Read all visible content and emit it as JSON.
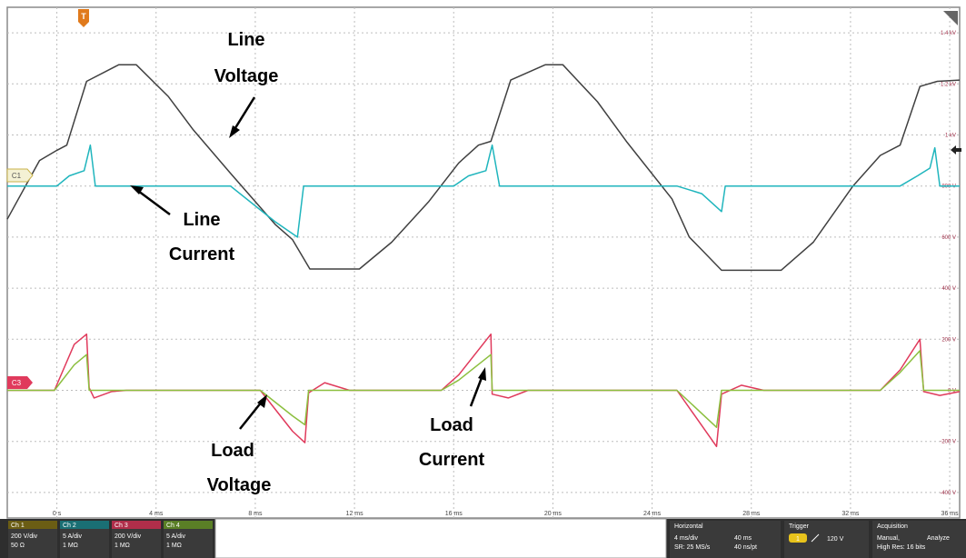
{
  "chart_data": {
    "type": "line",
    "xlabel": "",
    "ylabel": "",
    "x_range_ms": [
      -2,
      36.4
    ],
    "x_ticks": [
      {
        "x": 0,
        "label": "0 s"
      },
      {
        "x": 4,
        "label": "4 ms"
      },
      {
        "x": 8,
        "label": "8 ms"
      },
      {
        "x": 12,
        "label": "12 ms"
      },
      {
        "x": 16,
        "label": "16 ms"
      },
      {
        "x": 20,
        "label": "20 ms"
      },
      {
        "x": 24,
        "label": "24 ms"
      },
      {
        "x": 28,
        "label": "28 ms"
      },
      {
        "x": 32,
        "label": "32 ms"
      },
      {
        "x": 36,
        "label": "36 ms"
      }
    ],
    "y_range_V": [
      -500,
      1500
    ],
    "y_ticks": [
      {
        "v": 1400,
        "label": "1.4 kV"
      },
      {
        "v": 1200,
        "label": "1.2 kV"
      },
      {
        "v": 1000,
        "label": "1 kV"
      },
      {
        "v": 800,
        "label": "800 V"
      },
      {
        "v": 600,
        "label": "600 V"
      },
      {
        "v": 400,
        "label": "400 V"
      },
      {
        "v": 200,
        "label": "200 V"
      },
      {
        "v": 0,
        "label": "0 V"
      },
      {
        "v": -200,
        "label": "-200 V"
      },
      {
        "v": -400,
        "label": "-400 V"
      }
    ],
    "grid": true,
    "series": [
      {
        "name": "Ch 1",
        "color": "#404040",
        "points": [
          [
            -2,
            670
          ],
          [
            -0.7,
            900
          ],
          [
            0,
            940
          ],
          [
            0.4,
            960
          ],
          [
            1.2,
            1210
          ],
          [
            2.5,
            1275
          ],
          [
            3.2,
            1275
          ],
          [
            4.5,
            1150
          ],
          [
            5.5,
            1020
          ],
          [
            7,
            850
          ],
          [
            8.8,
            650
          ],
          [
            9.5,
            590
          ],
          [
            10.2,
            475
          ],
          [
            12.2,
            475
          ],
          [
            13.5,
            580
          ],
          [
            15,
            740
          ],
          [
            16.2,
            890
          ],
          [
            17,
            960
          ],
          [
            17.5,
            975
          ],
          [
            18.3,
            1215
          ],
          [
            19.7,
            1275
          ],
          [
            20.4,
            1275
          ],
          [
            21.8,
            1130
          ],
          [
            23,
            970
          ],
          [
            24.8,
            750
          ],
          [
            25.5,
            600
          ],
          [
            26,
            550
          ],
          [
            26.8,
            470
          ],
          [
            29.2,
            470
          ],
          [
            30.5,
            580
          ],
          [
            32.1,
            800
          ],
          [
            33.2,
            920
          ],
          [
            34,
            960
          ],
          [
            34.8,
            1190
          ],
          [
            35.5,
            1210
          ],
          [
            36.4,
            1215
          ]
        ]
      },
      {
        "name": "Ch 2",
        "color": "#1fb5bd",
        "points": [
          [
            -2,
            800
          ],
          [
            0,
            800
          ],
          [
            0.5,
            840
          ],
          [
            1.1,
            860
          ],
          [
            1.35,
            960
          ],
          [
            1.55,
            800
          ],
          [
            7,
            800
          ],
          [
            8.8,
            660
          ],
          [
            9.7,
            600
          ],
          [
            9.95,
            800
          ],
          [
            16,
            800
          ],
          [
            16.6,
            840
          ],
          [
            17.3,
            860
          ],
          [
            17.55,
            960
          ],
          [
            17.85,
            800
          ],
          [
            25,
            800
          ],
          [
            26,
            770
          ],
          [
            26.8,
            700
          ],
          [
            26.95,
            800
          ],
          [
            34,
            800
          ],
          [
            34.7,
            840
          ],
          [
            35.2,
            870
          ],
          [
            35.4,
            950
          ],
          [
            35.6,
            800
          ],
          [
            36.4,
            800
          ]
        ]
      },
      {
        "name": "Ch 3",
        "color": "#e03a5c",
        "points": [
          [
            -2,
            0
          ],
          [
            -0.1,
            0
          ],
          [
            0.7,
            180
          ],
          [
            1.2,
            220
          ],
          [
            1.3,
            10
          ],
          [
            1.5,
            -30
          ],
          [
            2.2,
            -5
          ],
          [
            2.8,
            0
          ],
          [
            8.2,
            0
          ],
          [
            9.5,
            -160
          ],
          [
            10,
            -205
          ],
          [
            10.15,
            -10
          ],
          [
            10.8,
            30
          ],
          [
            11.8,
            0
          ],
          [
            15.5,
            0
          ],
          [
            16.2,
            60
          ],
          [
            17.5,
            220
          ],
          [
            17.55,
            -15
          ],
          [
            18.2,
            -30
          ],
          [
            19,
            0
          ],
          [
            25,
            0
          ],
          [
            26.6,
            -220
          ],
          [
            26.8,
            -15
          ],
          [
            27.6,
            20
          ],
          [
            28.5,
            0
          ],
          [
            33.2,
            0
          ],
          [
            34,
            80
          ],
          [
            34.8,
            200
          ],
          [
            34.95,
            -5
          ],
          [
            35.6,
            -20
          ],
          [
            36.4,
            -5
          ]
        ]
      },
      {
        "name": "Ch 4",
        "color": "#8cbf3f",
        "points": [
          [
            -2,
            0
          ],
          [
            -0.1,
            0
          ],
          [
            0.7,
            100
          ],
          [
            1.2,
            140
          ],
          [
            1.3,
            0
          ],
          [
            8.2,
            0
          ],
          [
            9.5,
            -100
          ],
          [
            10,
            -135
          ],
          [
            10.15,
            0
          ],
          [
            15.5,
            0
          ],
          [
            16.2,
            40
          ],
          [
            17.5,
            140
          ],
          [
            17.55,
            0
          ],
          [
            25,
            0
          ],
          [
            26.6,
            -145
          ],
          [
            26.8,
            0
          ],
          [
            33.2,
            0
          ],
          [
            34,
            70
          ],
          [
            34.8,
            155
          ],
          [
            34.95,
            0
          ],
          [
            36.4,
            0
          ]
        ]
      }
    ],
    "annotations": [
      {
        "lines": [
          "Line",
          "Voltage"
        ]
      },
      {
        "lines": [
          "Line",
          "Current"
        ]
      },
      {
        "lines": [
          "Load",
          "Voltage"
        ]
      },
      {
        "lines": [
          "Load",
          "Current"
        ]
      }
    ]
  },
  "channel_markers": {
    "ch1": "C1",
    "ch3": "C3",
    "trigger": "T"
  },
  "bottom_panel": {
    "channels": [
      {
        "label": "Ch 1",
        "line1": "200 V/div",
        "line2": "50 Ω",
        "color": "#e8c31c"
      },
      {
        "label": "Ch 2",
        "line1": "5 A/div",
        "line2": "1 MΩ",
        "color": "#1fb5bd"
      },
      {
        "label": "Ch 3",
        "line1": "200 V/div",
        "line2": "1 MΩ",
        "color": "#e03a5c"
      },
      {
        "label": "Ch 4",
        "line1": "5 A/div",
        "line2": "1 MΩ",
        "color": "#8cbf3f"
      }
    ],
    "horizontal": {
      "title": "Horizontal",
      "line1a": "4 ms/div",
      "line1b": "40 ms",
      "line2a": "SR: 25 MS/s",
      "line2b": "40 ns/pt"
    },
    "trigger": {
      "title": "Trigger",
      "source": "1",
      "value": "120 V"
    },
    "acquisition": {
      "title": "Acquisition",
      "line1a": "Manual,",
      "line1b": "Analyze",
      "line2": "High Res: 16 bits"
    }
  }
}
